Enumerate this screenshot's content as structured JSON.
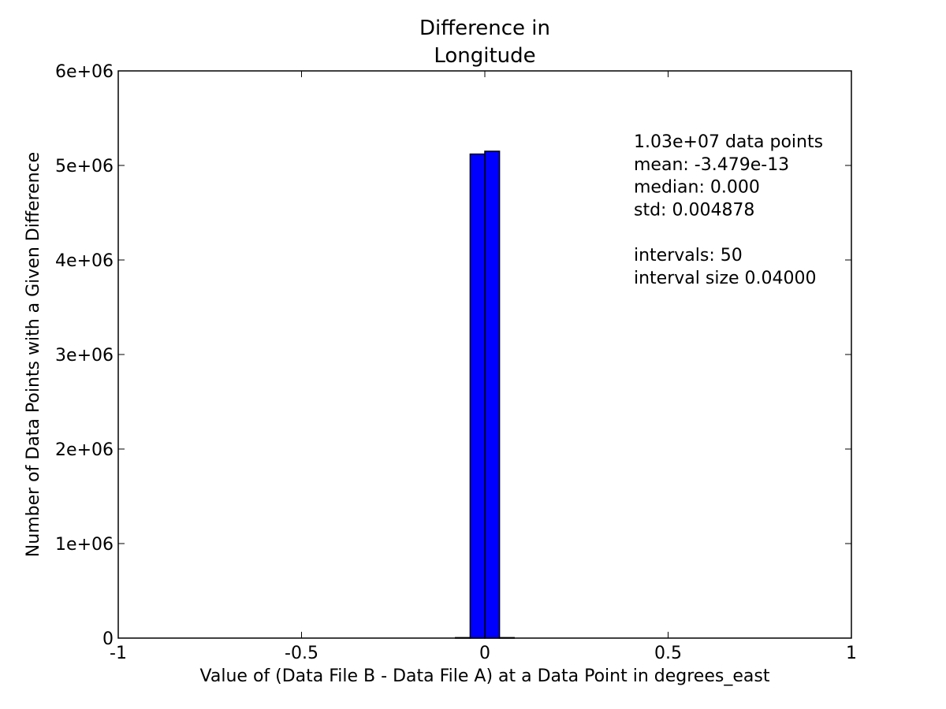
{
  "chart_data": {
    "type": "bar",
    "title_lines": [
      "Difference in",
      "Longitude"
    ],
    "xlabel": "Value of (Data File B - Data File A) at a Data Point in degrees_east",
    "ylabel": "Number of Data Points with a Given Difference",
    "xlim": [
      -1,
      1
    ],
    "ylim": [
      0,
      6000000
    ],
    "x_ticks": [
      -1,
      -0.5,
      0,
      0.5,
      1
    ],
    "x_tick_labels": [
      "-1",
      "-0.5",
      "0",
      "0.5",
      "1"
    ],
    "y_ticks": [
      0,
      1000000,
      2000000,
      3000000,
      4000000,
      5000000,
      6000000
    ],
    "y_tick_labels": [
      "0",
      "1e+06",
      "2e+06",
      "3e+06",
      "4e+06",
      "5e+06",
      "6e+06"
    ],
    "grid": false,
    "bar_color": "#0000ff",
    "bins": [
      {
        "left": -0.08,
        "right": -0.04,
        "value": 5000
      },
      {
        "left": -0.04,
        "right": 0.0,
        "value": 5120000
      },
      {
        "left": 0.0,
        "right": 0.04,
        "value": 5150000
      },
      {
        "left": 0.04,
        "right": 0.08,
        "value": 5000
      }
    ],
    "annotation_lines": [
      "1.03e+07 data points",
      "mean: -3.479e-13",
      "median: 0.000",
      "std: 0.004878",
      "",
      "intervals: 50",
      "interval size 0.04000"
    ]
  }
}
